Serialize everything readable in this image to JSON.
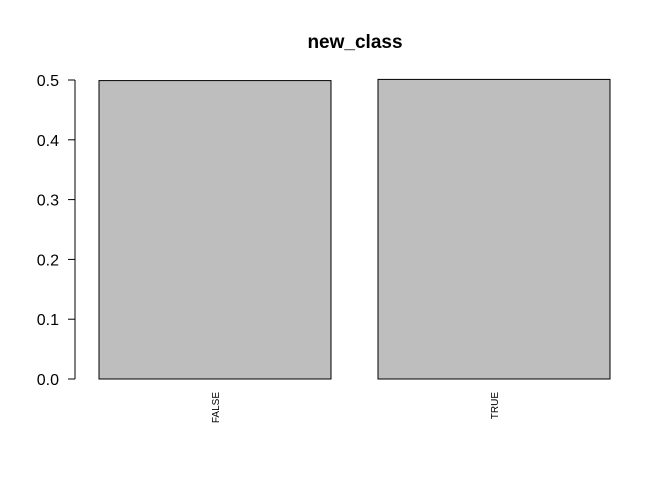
{
  "chart_data": {
    "type": "bar",
    "title": "new_class",
    "xlabel": "",
    "ylabel": "",
    "categories": [
      "FALSE",
      "TRUE"
    ],
    "values": [
      0.499,
      0.501
    ],
    "ylim": [
      0,
      0.5
    ],
    "yticks": [
      "0.0",
      "0.1",
      "0.2",
      "0.3",
      "0.4",
      "0.5"
    ],
    "category_label_orientation": "vertical",
    "grid": false,
    "legend": "none",
    "bar_color": "#bebebe",
    "bar_border_color": "#000000"
  }
}
